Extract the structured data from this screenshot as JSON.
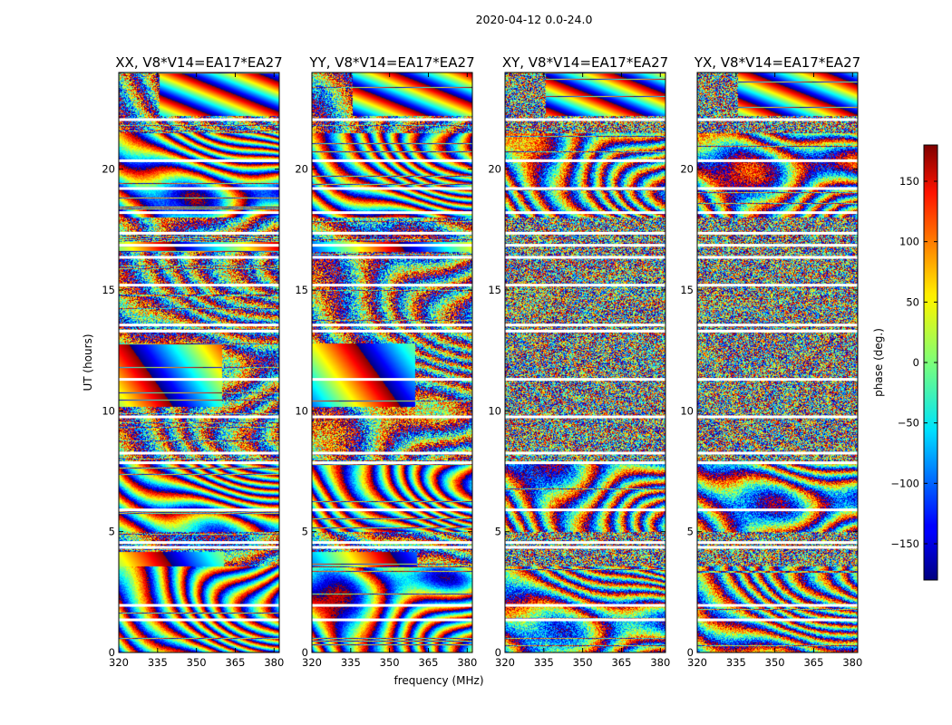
{
  "figure": {
    "suptitle": "2020-04-12 0.0-24.0"
  },
  "chart_data": {
    "type": "heatmap",
    "xlabel": "frequency (MHz)",
    "ylabel": "UT (hours)",
    "xlim": [
      320,
      382
    ],
    "ylim": [
      0,
      24
    ],
    "xticks": [
      "320",
      "335",
      "350",
      "365",
      "380"
    ],
    "xtick_values": [
      320,
      335,
      350,
      365,
      380
    ],
    "yticks": [
      "0",
      "5",
      "10",
      "15",
      "20"
    ],
    "ytick_values": [
      0,
      5,
      10,
      15,
      20
    ],
    "panels": [
      {
        "title": "XX, V8*V14=EA17*EA27",
        "polarization": "XX"
      },
      {
        "title": "YY, V8*V14=EA17*EA27",
        "polarization": "YY"
      },
      {
        "title": "XY, V8*V14=EA17*EA27",
        "polarization": "XY"
      },
      {
        "title": "YX, V8*V14=EA17*EA27",
        "polarization": "YX"
      }
    ],
    "colorbar": {
      "label": "phase (deg.)",
      "range": [
        -180,
        180
      ],
      "ticks": [
        "−150",
        "−100",
        "−50",
        "0",
        "50",
        "100",
        "150"
      ],
      "tick_values": [
        -150,
        -100,
        -50,
        0,
        50,
        100,
        150
      ],
      "colormap": "jet"
    }
  }
}
